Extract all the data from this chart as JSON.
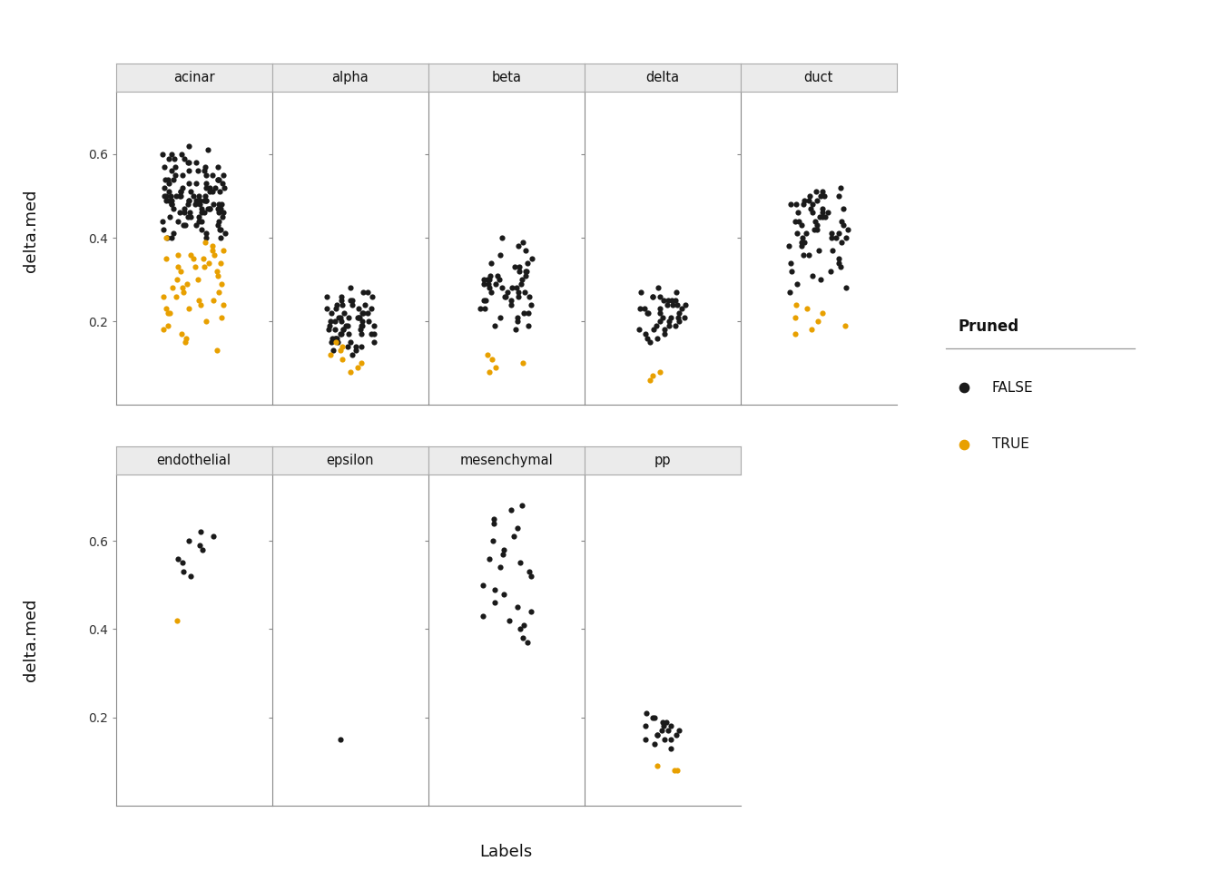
{
  "panels_row1": [
    "acinar",
    "alpha",
    "beta",
    "delta",
    "duct"
  ],
  "panels_row2": [
    "endothelial",
    "epsilon",
    "mesenchymal",
    "pp"
  ],
  "ylabel": "delta.med",
  "xlabel": "Labels",
  "legend_title": "Pruned",
  "violin_color": "#c0c0c0",
  "violin_edge_color": "#555555",
  "point_false_color": "#1a1a1a",
  "point_true_color": "#E8A000",
  "point_size": 20,
  "ymin": 0.0,
  "ymax": 0.75,
  "yticks": [
    0.2,
    0.4,
    0.6
  ],
  "strip_color": "#ebebeb",
  "strip_edge_color": "#aaaaaa",
  "data": {
    "acinar": {
      "false": [
        0.62,
        0.61,
        0.6,
        0.6,
        0.6,
        0.59,
        0.59,
        0.59,
        0.58,
        0.58,
        0.58,
        0.57,
        0.57,
        0.57,
        0.57,
        0.56,
        0.56,
        0.56,
        0.56,
        0.55,
        0.55,
        0.55,
        0.55,
        0.55,
        0.54,
        0.54,
        0.54,
        0.54,
        0.54,
        0.54,
        0.53,
        0.53,
        0.53,
        0.53,
        0.53,
        0.52,
        0.52,
        0.52,
        0.52,
        0.52,
        0.52,
        0.51,
        0.51,
        0.51,
        0.51,
        0.51,
        0.51,
        0.51,
        0.5,
        0.5,
        0.5,
        0.5,
        0.5,
        0.5,
        0.5,
        0.5,
        0.5,
        0.49,
        0.49,
        0.49,
        0.49,
        0.49,
        0.49,
        0.49,
        0.49,
        0.49,
        0.49,
        0.48,
        0.48,
        0.48,
        0.48,
        0.48,
        0.48,
        0.48,
        0.48,
        0.47,
        0.47,
        0.47,
        0.47,
        0.47,
        0.47,
        0.47,
        0.47,
        0.46,
        0.46,
        0.46,
        0.46,
        0.46,
        0.46,
        0.46,
        0.45,
        0.45,
        0.45,
        0.45,
        0.45,
        0.44,
        0.44,
        0.44,
        0.44,
        0.44,
        0.43,
        0.43,
        0.43,
        0.43,
        0.42,
        0.42,
        0.42,
        0.42,
        0.41,
        0.41,
        0.41,
        0.4,
        0.4,
        0.4,
        0.4
      ],
      "true": [
        0.4,
        0.39,
        0.38,
        0.37,
        0.37,
        0.36,
        0.36,
        0.36,
        0.35,
        0.35,
        0.35,
        0.34,
        0.34,
        0.33,
        0.33,
        0.33,
        0.32,
        0.32,
        0.31,
        0.3,
        0.3,
        0.29,
        0.29,
        0.28,
        0.28,
        0.27,
        0.27,
        0.26,
        0.26,
        0.25,
        0.25,
        0.24,
        0.24,
        0.23,
        0.23,
        0.22,
        0.22,
        0.21,
        0.2,
        0.19,
        0.18,
        0.17,
        0.16,
        0.15,
        0.13
      ]
    },
    "alpha": {
      "false": [
        0.28,
        0.27,
        0.27,
        0.26,
        0.26,
        0.26,
        0.25,
        0.25,
        0.25,
        0.24,
        0.24,
        0.24,
        0.24,
        0.23,
        0.23,
        0.23,
        0.23,
        0.22,
        0.22,
        0.22,
        0.22,
        0.22,
        0.21,
        0.21,
        0.21,
        0.21,
        0.21,
        0.21,
        0.2,
        0.2,
        0.2,
        0.2,
        0.2,
        0.19,
        0.19,
        0.19,
        0.19,
        0.19,
        0.19,
        0.18,
        0.18,
        0.18,
        0.18,
        0.18,
        0.17,
        0.17,
        0.17,
        0.17,
        0.17,
        0.17,
        0.16,
        0.16,
        0.16,
        0.16,
        0.15,
        0.15,
        0.15,
        0.15,
        0.14,
        0.14,
        0.14,
        0.13,
        0.13,
        0.12
      ],
      "true": [
        0.15,
        0.14,
        0.13,
        0.12,
        0.11,
        0.1,
        0.09,
        0.08
      ]
    },
    "beta": {
      "false": [
        0.4,
        0.39,
        0.38,
        0.37,
        0.36,
        0.35,
        0.34,
        0.34,
        0.33,
        0.33,
        0.32,
        0.32,
        0.32,
        0.31,
        0.31,
        0.31,
        0.3,
        0.3,
        0.3,
        0.3,
        0.3,
        0.29,
        0.29,
        0.29,
        0.29,
        0.28,
        0.28,
        0.28,
        0.28,
        0.27,
        0.27,
        0.27,
        0.27,
        0.26,
        0.26,
        0.26,
        0.26,
        0.25,
        0.25,
        0.25,
        0.24,
        0.24,
        0.23,
        0.23,
        0.22,
        0.22,
        0.21,
        0.21,
        0.2,
        0.19,
        0.19,
        0.18
      ],
      "true": [
        0.12,
        0.11,
        0.1,
        0.09,
        0.08
      ]
    },
    "delta": {
      "false": [
        0.28,
        0.27,
        0.27,
        0.26,
        0.26,
        0.26,
        0.25,
        0.25,
        0.25,
        0.25,
        0.24,
        0.24,
        0.24,
        0.24,
        0.23,
        0.23,
        0.23,
        0.23,
        0.22,
        0.22,
        0.22,
        0.22,
        0.21,
        0.21,
        0.21,
        0.21,
        0.2,
        0.2,
        0.2,
        0.19,
        0.19,
        0.19,
        0.18,
        0.18,
        0.18,
        0.17,
        0.17,
        0.16,
        0.16,
        0.15
      ],
      "true": [
        0.08,
        0.07,
        0.06
      ]
    },
    "duct": {
      "false": [
        0.52,
        0.51,
        0.51,
        0.5,
        0.5,
        0.5,
        0.5,
        0.49,
        0.49,
        0.49,
        0.48,
        0.48,
        0.48,
        0.48,
        0.47,
        0.47,
        0.47,
        0.46,
        0.46,
        0.46,
        0.46,
        0.45,
        0.45,
        0.45,
        0.44,
        0.44,
        0.44,
        0.44,
        0.43,
        0.43,
        0.43,
        0.42,
        0.42,
        0.42,
        0.41,
        0.41,
        0.41,
        0.41,
        0.4,
        0.4,
        0.4,
        0.4,
        0.39,
        0.39,
        0.39,
        0.38,
        0.38,
        0.37,
        0.37,
        0.36,
        0.36,
        0.35,
        0.34,
        0.34,
        0.33,
        0.32,
        0.32,
        0.31,
        0.3,
        0.29,
        0.28,
        0.27
      ],
      "true": [
        0.24,
        0.23,
        0.22,
        0.21,
        0.2,
        0.19,
        0.18,
        0.17
      ]
    },
    "endothelial": {
      "false": [
        0.62,
        0.61,
        0.6,
        0.59,
        0.58,
        0.56,
        0.55,
        0.53,
        0.52
      ],
      "true": [
        0.42
      ]
    },
    "epsilon": {
      "false": [
        0.15
      ],
      "true": []
    },
    "mesenchymal": {
      "false": [
        0.68,
        0.67,
        0.65,
        0.64,
        0.63,
        0.61,
        0.6,
        0.58,
        0.57,
        0.56,
        0.55,
        0.54,
        0.53,
        0.52,
        0.5,
        0.49,
        0.48,
        0.46,
        0.45,
        0.44,
        0.43,
        0.42,
        0.41,
        0.4,
        0.38,
        0.37
      ],
      "true": []
    },
    "pp": {
      "false": [
        0.21,
        0.2,
        0.2,
        0.19,
        0.19,
        0.18,
        0.18,
        0.18,
        0.17,
        0.17,
        0.17,
        0.16,
        0.16,
        0.16,
        0.15,
        0.15,
        0.15,
        0.14,
        0.13
      ],
      "true": [
        0.09,
        0.08,
        0.08
      ]
    }
  }
}
